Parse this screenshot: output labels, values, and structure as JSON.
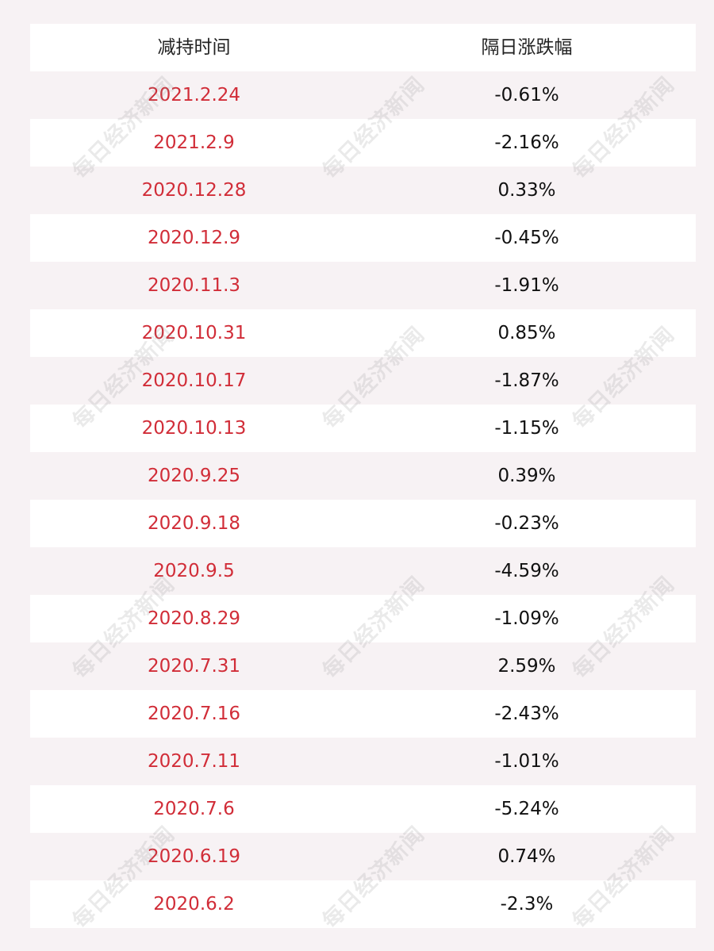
{
  "table": {
    "header": {
      "col1": "减持时间",
      "col2": "隔日涨跌幅"
    },
    "rows": [
      {
        "date": "2021.2.24",
        "change": "-0.61%"
      },
      {
        "date": "2021.2.9",
        "change": "-2.16%"
      },
      {
        "date": "2020.12.28",
        "change": "0.33%"
      },
      {
        "date": "2020.12.9",
        "change": "-0.45%"
      },
      {
        "date": "2020.11.3",
        "change": "-1.91%"
      },
      {
        "date": "2020.10.31",
        "change": "0.85%"
      },
      {
        "date": "2020.10.17",
        "change": "-1.87%"
      },
      {
        "date": "2020.10.13",
        "change": "-1.15%"
      },
      {
        "date": "2020.9.25",
        "change": "0.39%"
      },
      {
        "date": "2020.9.18",
        "change": "-0.23%"
      },
      {
        "date": "2020.9.5",
        "change": "-4.59%"
      },
      {
        "date": "2020.8.29",
        "change": "-1.09%"
      },
      {
        "date": "2020.7.31",
        "change": "2.59%"
      },
      {
        "date": "2020.7.16",
        "change": "-2.43%"
      },
      {
        "date": "2020.7.11",
        "change": "-1.01%"
      },
      {
        "date": "2020.7.6",
        "change": "-5.24%"
      },
      {
        "date": "2020.6.19",
        "change": "0.74%"
      },
      {
        "date": "2020.6.2",
        "change": "-2.3%"
      }
    ]
  },
  "watermark": {
    "text": "每日经济新闻"
  },
  "colors": {
    "date_text": "#d12d38",
    "change_text": "#111111",
    "row_white": "#ffffff",
    "row_tint": "#f7f2f4"
  }
}
